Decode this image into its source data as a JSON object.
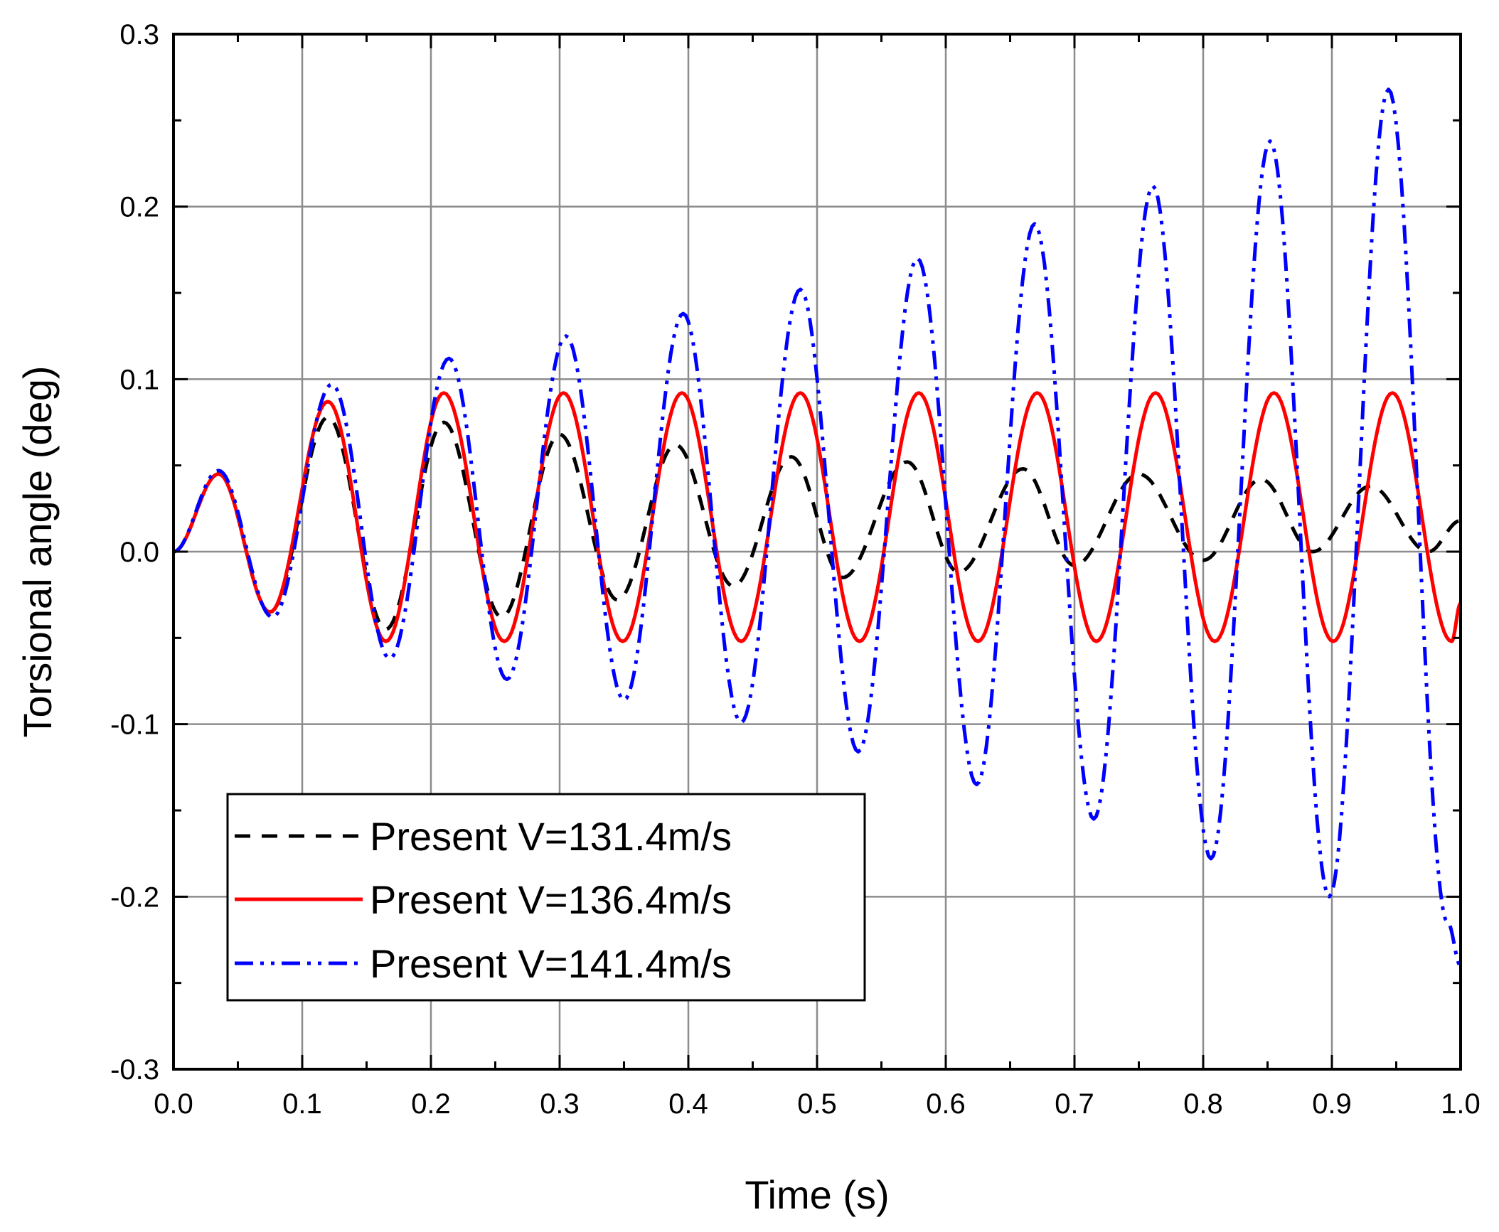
{
  "chart_data": {
    "type": "line",
    "title": "",
    "xlabel": "Time (s)",
    "ylabel": "Torsional angle (deg)",
    "xlim": [
      0.0,
      1.0
    ],
    "ylim": [
      -0.3,
      0.3
    ],
    "grid": true,
    "legend_position": "bottom-left",
    "x_ticks": [
      0.0,
      0.1,
      0.2,
      0.3,
      0.4,
      0.5,
      0.6,
      0.7,
      0.8,
      0.9,
      1.0
    ],
    "x_tick_labels": [
      "0.0",
      "0.1",
      "0.2",
      "0.3",
      "0.4",
      "0.5",
      "0.6",
      "0.7",
      "0.8",
      "0.9",
      "1.0"
    ],
    "y_ticks": [
      -0.3,
      -0.2,
      -0.1,
      0.0,
      0.1,
      0.2,
      0.3
    ],
    "y_tick_labels": [
      "-0.3",
      "-0.2",
      "-0.1",
      "0.0",
      "0.1",
      "0.2",
      "0.3"
    ],
    "series": [
      {
        "name": "Present V=131.4m/s",
        "color": "#000000",
        "style": "dashed",
        "x": [
          0.0,
          0.035,
          0.075,
          0.12,
          0.165,
          0.21,
          0.255,
          0.3,
          0.345,
          0.39,
          0.435,
          0.48,
          0.52,
          0.57,
          0.61,
          0.66,
          0.7,
          0.75,
          0.8,
          0.845,
          0.885,
          0.93,
          0.975,
          1.0
        ],
        "y": [
          0.0,
          0.045,
          -0.035,
          0.078,
          -0.045,
          0.075,
          -0.038,
          0.068,
          -0.028,
          0.062,
          -0.02,
          0.055,
          -0.015,
          0.052,
          -0.012,
          0.048,
          -0.008,
          0.045,
          -0.005,
          0.042,
          0.0,
          0.038,
          0.0,
          0.018
        ]
      },
      {
        "name": "Present V=136.4m/s",
        "color": "#ff0000",
        "style": "solid",
        "x": [
          0.0,
          0.035,
          0.075,
          0.12,
          0.165,
          0.21,
          0.257,
          0.303,
          0.349,
          0.395,
          0.441,
          0.487,
          0.533,
          0.579,
          0.625,
          0.671,
          0.717,
          0.763,
          0.809,
          0.855,
          0.901,
          0.947,
          0.993,
          1.0
        ],
        "y": [
          0.0,
          0.045,
          -0.035,
          0.087,
          -0.052,
          0.092,
          -0.052,
          0.092,
          -0.052,
          0.092,
          -0.052,
          0.092,
          -0.052,
          0.092,
          -0.052,
          0.092,
          -0.052,
          0.092,
          -0.052,
          0.092,
          -0.052,
          0.092,
          -0.052,
          -0.03
        ]
      },
      {
        "name": "Present V=141.4m/s",
        "color": "#0000ff",
        "style": "dash-dot-dot",
        "x": [
          0.0,
          0.035,
          0.077,
          0.123,
          0.168,
          0.214,
          0.259,
          0.305,
          0.35,
          0.396,
          0.441,
          0.487,
          0.532,
          0.578,
          0.624,
          0.669,
          0.715,
          0.761,
          0.806,
          0.852,
          0.898,
          0.944,
          0.99,
          1.0
        ],
        "y": [
          0.0,
          0.047,
          -0.038,
          0.097,
          -0.062,
          0.112,
          -0.074,
          0.125,
          -0.086,
          0.138,
          -0.099,
          0.152,
          -0.116,
          0.17,
          -0.135,
          0.19,
          -0.155,
          0.212,
          -0.178,
          0.238,
          -0.2,
          0.268,
          -0.215,
          -0.24
        ]
      }
    ]
  }
}
